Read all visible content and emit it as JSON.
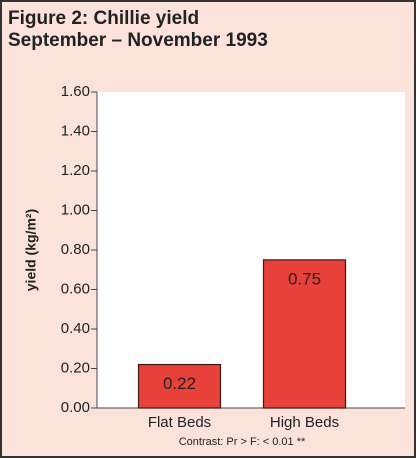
{
  "chart_data": {
    "type": "bar",
    "title": "Figure 2: Chillie yield",
    "subtitle": "September – November 1993",
    "ylabel": "yield (kg/m²)",
    "categories": [
      "Flat Beds",
      "High Beds"
    ],
    "values": [
      0.22,
      0.75
    ],
    "value_labels": [
      "0.22",
      "0.75"
    ],
    "color": "#e8413a",
    "ylim": [
      0,
      1.6
    ],
    "yticks": [
      {
        "value": 0,
        "label": "0.00"
      },
      {
        "value": 0.2,
        "label": "0.20"
      },
      {
        "value": 0.4,
        "label": "0.40"
      },
      {
        "value": 0.6,
        "label": "0.60"
      },
      {
        "value": 0.8,
        "label": "0.80"
      },
      {
        "value": 1.0,
        "label": "1.00"
      },
      {
        "value": 1.2,
        "label": "1.20"
      },
      {
        "value": 1.4,
        "label": "1.40"
      },
      {
        "value": 1.6,
        "label": "1.60"
      }
    ],
    "annotation": "Contrast: Pr > F: < 0.01 **"
  }
}
